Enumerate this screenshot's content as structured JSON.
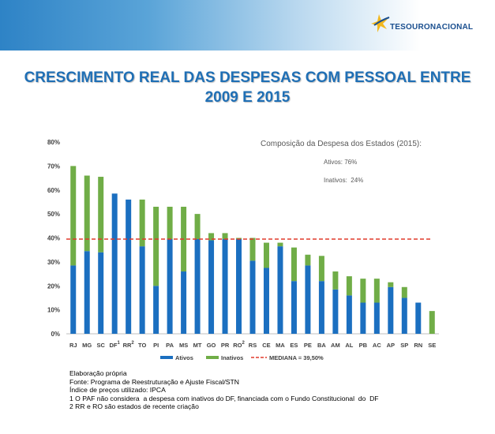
{
  "header": {
    "logo_text": "TESOURONACIONAL",
    "title_line1": "CRESCIMENTO REAL DAS DESPESAS COM PESSOAL ENTRE",
    "title_line2": "2009 E 2015"
  },
  "chart_data": {
    "type": "bar",
    "stacked": true,
    "categories": [
      "RJ",
      "MG",
      "SC",
      "DF",
      "RR",
      "TO",
      "PI",
      "PA",
      "MS",
      "MT",
      "GO",
      "PR",
      "RO",
      "RS",
      "CE",
      "MA",
      "ES",
      "PE",
      "BA",
      "AM",
      "AL",
      "PB",
      "AC",
      "AP",
      "SP",
      "RN",
      "SE"
    ],
    "category_superscripts": {
      "DF": "1",
      "RR": "2",
      "RO": "2"
    },
    "series": [
      {
        "name": "Ativos",
        "color": "#1b6fc0",
        "values": [
          28.5,
          34.5,
          34,
          58.5,
          56,
          36.5,
          20,
          39.5,
          26,
          39.5,
          39,
          39.5,
          39.5,
          30.5,
          27.5,
          36.5,
          22,
          28.5,
          22,
          18.5,
          16,
          13,
          13,
          19.5,
          15,
          13,
          0
        ]
      },
      {
        "name": "Inativos",
        "color": "#70ad47",
        "values": [
          41.5,
          31.5,
          31.5,
          0,
          0,
          19.5,
          33,
          13.5,
          27,
          10.5,
          3,
          2.5,
          0.5,
          9.5,
          10.5,
          1.5,
          14,
          4.5,
          10.5,
          7.5,
          8,
          10,
          10,
          2,
          4.5,
          0,
          9.5
        ]
      }
    ],
    "reference_line": {
      "name": "MEDIANA = 39,50%",
      "value": 39.5,
      "color": "#e03a2c",
      "style": "dashed"
    },
    "y_ticks": [
      "0%",
      "10%",
      "20%",
      "30%",
      "40%",
      "50%",
      "60%",
      "70%",
      "80%"
    ],
    "ylim": [
      0,
      80
    ],
    "grid": false,
    "legend_position": "bottom",
    "annotation": {
      "heading": "Composição da Despesa dos Estados (2015):",
      "line1": "Ativos: 76%",
      "line2": "Inativos:  24%"
    }
  },
  "notes": {
    "line1": "Elaboração própria",
    "line2": "Fonte: Programa de Reestruturação e Ajuste Fiscal/STN",
    "line3": "Índice de preços utilizado: IPCA",
    "line4": "1 O PAF não considera  a despesa com inativos do DF, financiada com o Fundo Constitucional  do  DF",
    "line5": "2 RR e RO são estados de recente criação"
  }
}
